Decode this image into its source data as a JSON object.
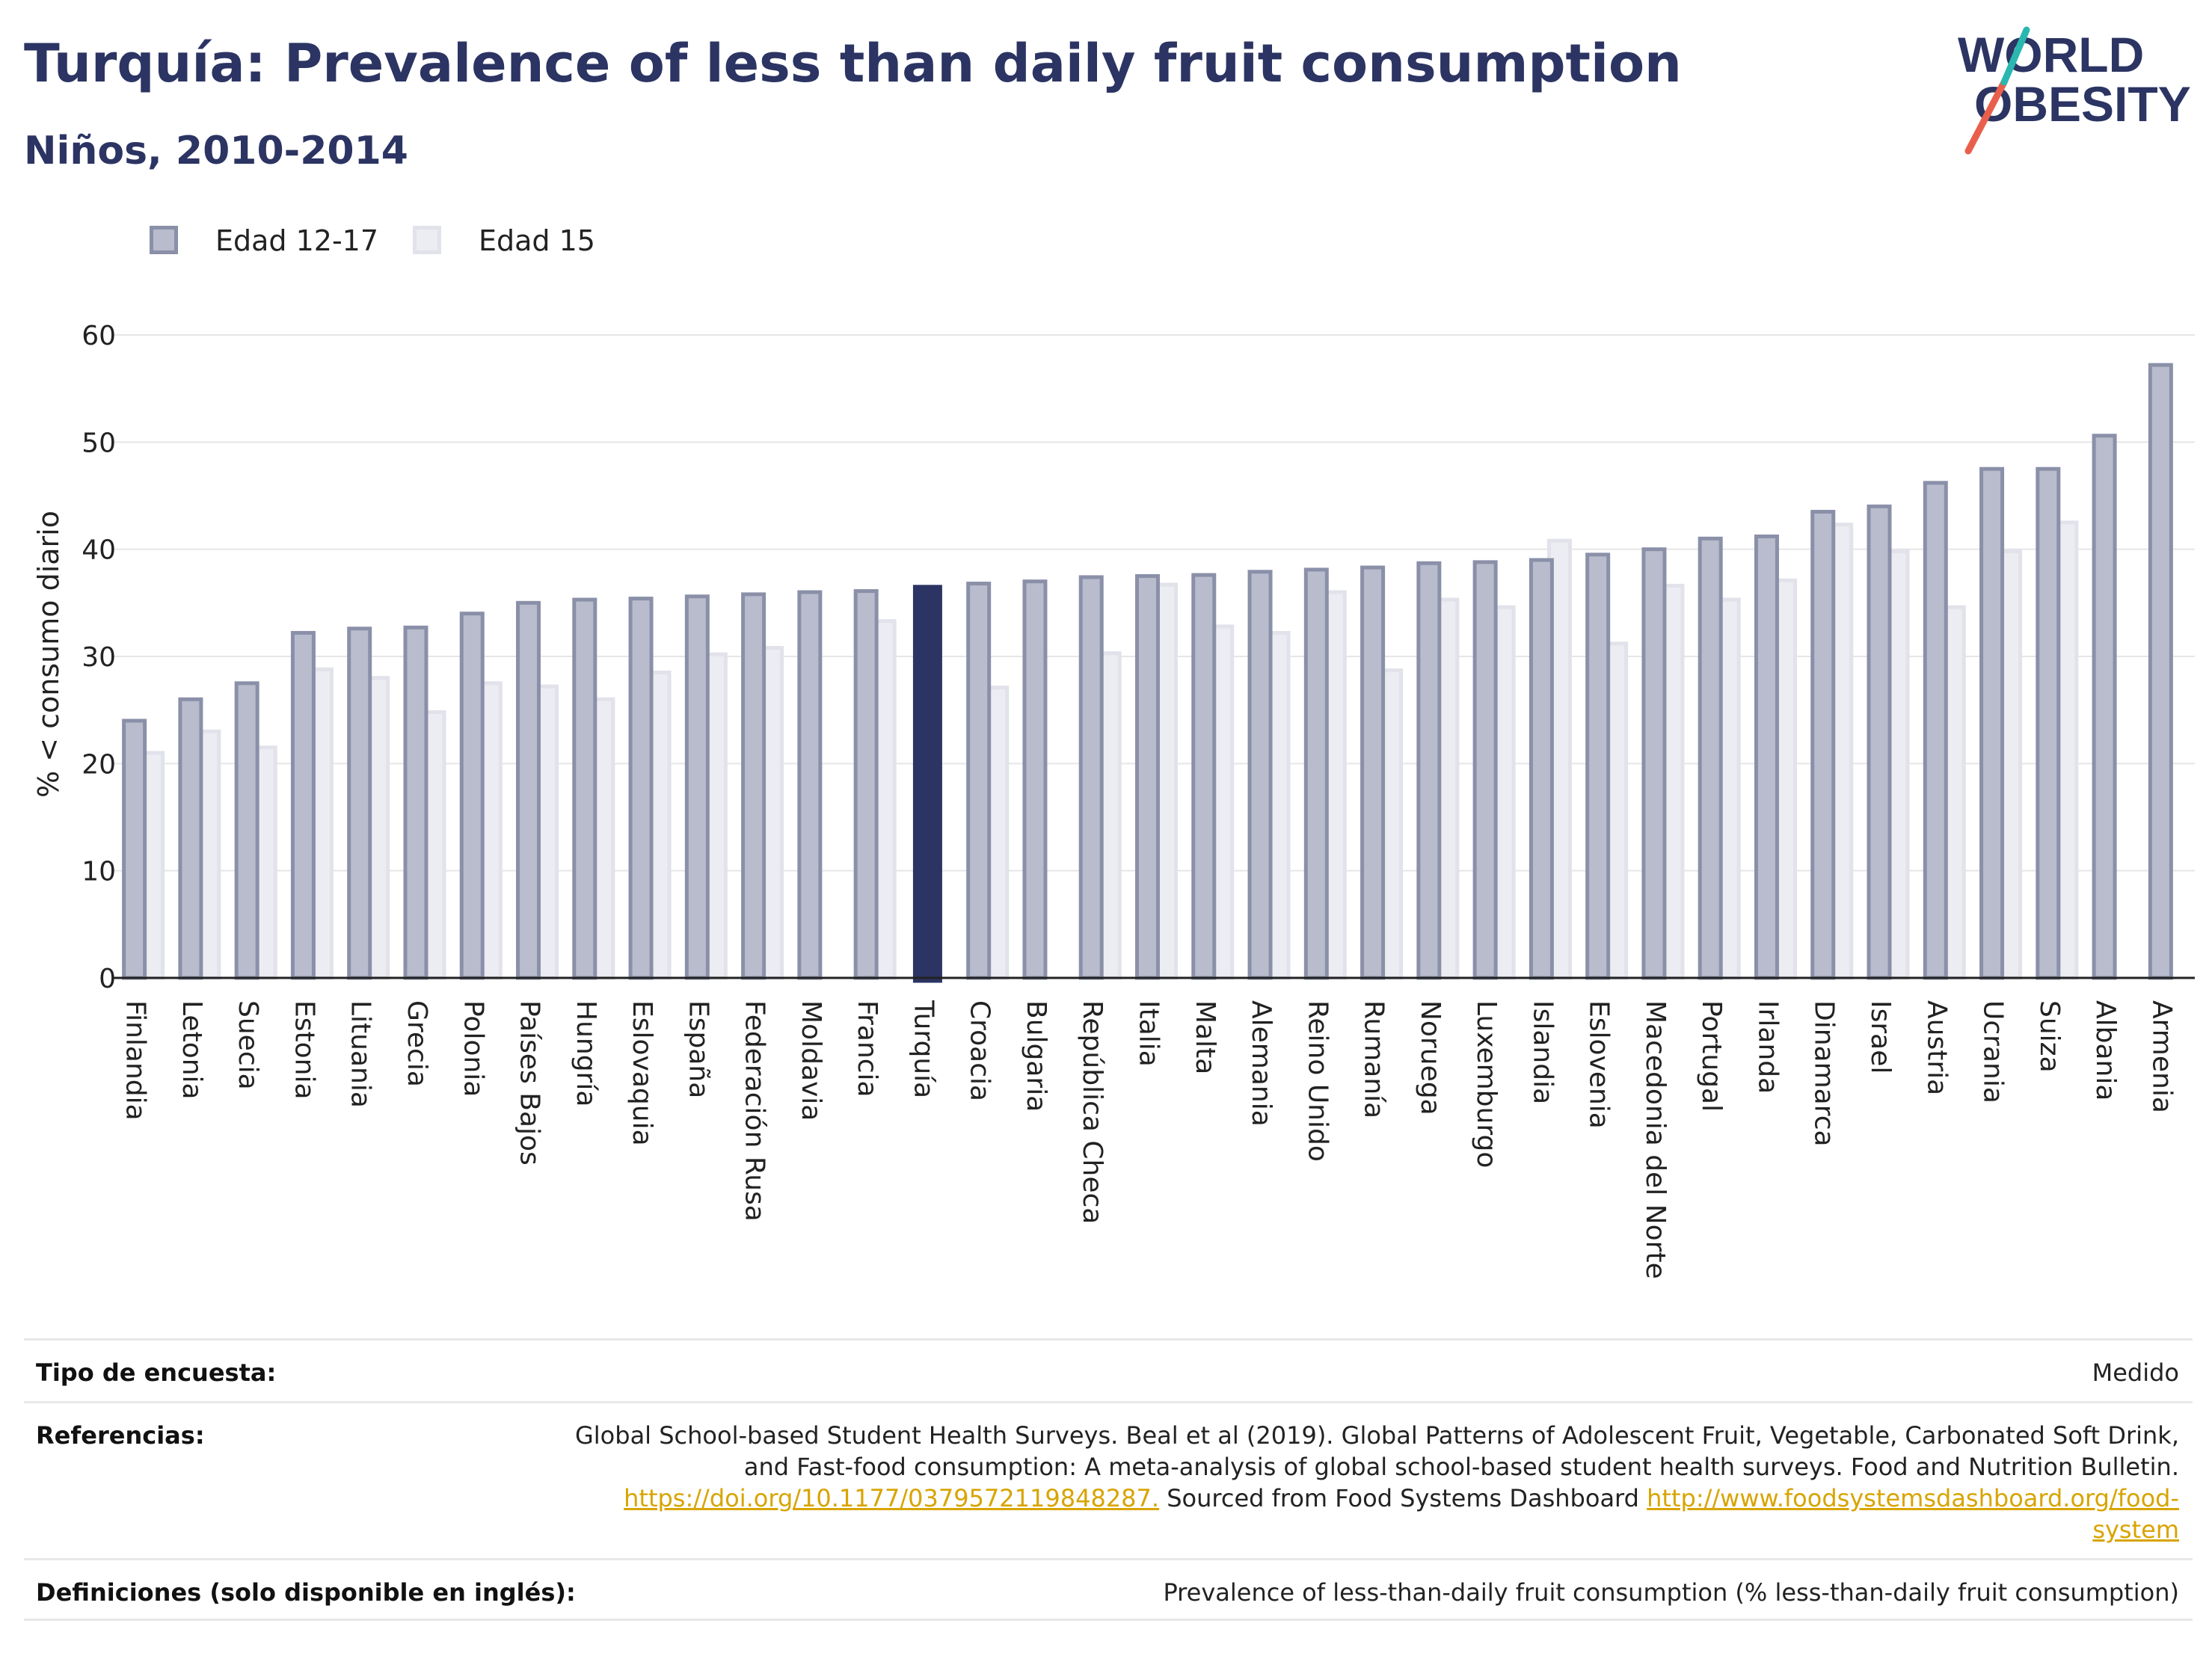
{
  "header": {
    "title": "Turquía: Prevalence of less than daily fruit consumption",
    "subtitle": "Niños, 2010-2014"
  },
  "logo": {
    "line1": "WORLD",
    "line2": "OBESITY",
    "accent_colors": [
      "#e8604c",
      "#2ab7b0"
    ]
  },
  "colors": {
    "series_12_17_fill": "#b9bccd",
    "series_12_17_stroke": "#8b90a9",
    "series_15_fill": "#ecedf2",
    "series_15_stroke": "#e1e2ea",
    "highlight": "#2b3462",
    "text_dark": "#2b3462",
    "link": "#d8a400"
  },
  "chart_data": {
    "type": "bar",
    "ylabel": "% < consumo diario",
    "ylim": [
      0,
      60
    ],
    "yticks": [
      0,
      10,
      20,
      30,
      40,
      50,
      60
    ],
    "grid": true,
    "legend_position": "top-left",
    "highlight_category": "Turquía",
    "categories": [
      "Finlandia",
      "Letonia",
      "Suecia",
      "Estonia",
      "Lituania",
      "Grecia",
      "Polonia",
      "Países Bajos",
      "Hungría",
      "Eslovaquia",
      "España",
      "Federación Rusa",
      "Moldavia",
      "Francia",
      "Turquía",
      "Croacia",
      "Bulgaria",
      "República Checa",
      "Italia",
      "Malta",
      "Alemania",
      "Reino Unido",
      "Rumanía",
      "Noruega",
      "Luxemburgo",
      "Islandia",
      "Eslovenia",
      "Macedonia del Norte",
      "Portugal",
      "Irlanda",
      "Dinamarca",
      "Israel",
      "Austria",
      "Ucrania",
      "Suiza",
      "Albania",
      "Armenia"
    ],
    "series": [
      {
        "name": "Edad 12-17",
        "values": [
          24.0,
          26.0,
          27.5,
          32.2,
          32.6,
          32.7,
          34.0,
          35.0,
          35.3,
          35.4,
          35.6,
          35.8,
          36.0,
          36.1,
          36.5,
          36.8,
          37.0,
          37.4,
          37.5,
          37.6,
          37.9,
          38.1,
          38.3,
          38.7,
          38.8,
          39.0,
          39.5,
          40.0,
          41.0,
          41.2,
          43.5,
          44.0,
          46.2,
          47.5,
          47.5,
          50.6,
          57.2
        ]
      },
      {
        "name": "Edad 15",
        "values": [
          21.0,
          23.0,
          21.5,
          28.8,
          28.0,
          24.8,
          27.5,
          27.2,
          26.0,
          28.5,
          30.2,
          30.8,
          null,
          33.3,
          null,
          27.1,
          null,
          30.3,
          36.7,
          32.8,
          32.2,
          36.0,
          28.7,
          35.3,
          34.6,
          40.8,
          31.2,
          36.6,
          35.3,
          37.1,
          42.3,
          39.8,
          34.6,
          39.8,
          42.5,
          null,
          null
        ]
      }
    ]
  },
  "info": {
    "survey_type_label": "Tipo de encuesta:",
    "survey_type_value": "Medido",
    "references_label": "Referencias:",
    "references_text_1": "Global School-based Student Health Surveys. Beal et al (2019). Global Patterns of Adolescent Fruit, Vegetable, Carbonated Soft Drink, and Fast-food consumption: A meta-analysis of global school-based student health surveys. Food and Nutrition Bulletin. ",
    "references_link_1": "https://doi.org/10.1177/0379572119848287.",
    "references_text_2": " Sourced from Food Systems Dashboard ",
    "references_link_2": "http://www.foodsystemsdashboard.org/food-system",
    "definitions_label": "Definiciones (solo disponible en inglés):",
    "definitions_value": "Prevalence of less-than-daily fruit consumption (% less-than-daily fruit consumption)"
  }
}
